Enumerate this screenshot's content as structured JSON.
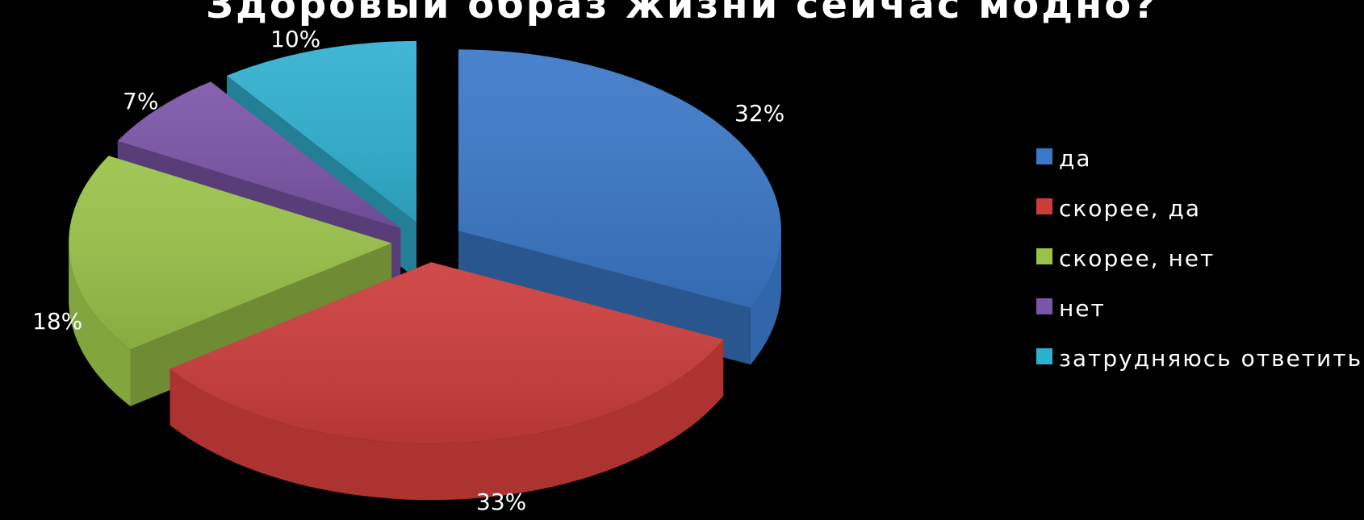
{
  "chart_data": {
    "type": "pie",
    "style": "3d-exploded",
    "title": "Здоровый образ жизни сейчас модно?",
    "categories": [
      "да",
      "скорее, да",
      "скорее, нет",
      "нет",
      "затрудняюсь ответить"
    ],
    "values": [
      32,
      33,
      18,
      7,
      10
    ],
    "labels": [
      "32%",
      "33%",
      "18%",
      "7%",
      "10%"
    ],
    "colors": [
      "#3a78c8",
      "#cc3c3a",
      "#9ac248",
      "#7b55a8",
      "#2fb0d0"
    ],
    "legend_position": "right"
  }
}
